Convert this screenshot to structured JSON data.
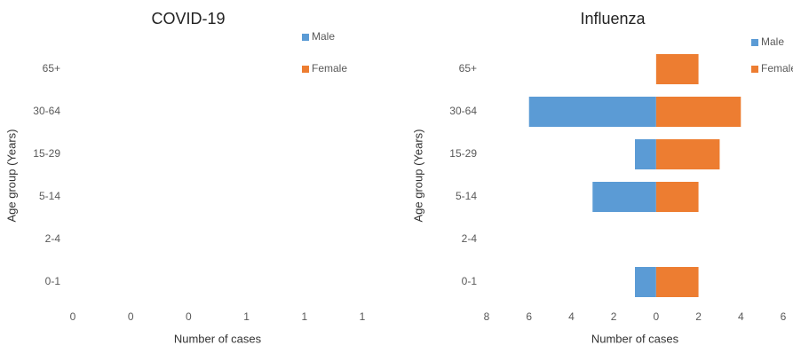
{
  "chart_data": [
    {
      "type": "bar",
      "orientation": "horizontal",
      "title": "COVID-19",
      "ylabel": "Age group (Years)",
      "xlabel": "Number of cases",
      "categories": [
        "0-1",
        "2-4",
        "5-14",
        "15-29",
        "30-64",
        "65+"
      ],
      "series": [
        {
          "name": "Male",
          "color": "#5b9bd5",
          "values": [
            0,
            0,
            0,
            0,
            0,
            0
          ]
        },
        {
          "name": "Female",
          "color": "#ed7d31",
          "values": [
            0,
            0,
            0,
            0,
            0,
            0
          ]
        }
      ],
      "xlim": [
        0,
        1
      ],
      "xticks": [
        0,
        {
          "value": 0.2,
          "label": "0"
        },
        {
          "value": 0.4,
          "label": "0"
        },
        {
          "value": 0.6,
          "label": "1"
        },
        {
          "value": 0.8,
          "label": "1"
        },
        1
      ]
    },
    {
      "type": "bar",
      "orientation": "horizontal",
      "title": "Influenza",
      "ylabel": "Age group (Years)",
      "xlabel": "Number of cases",
      "categories": [
        "0-1",
        "2-4",
        "5-14",
        "15-29",
        "30-64",
        "65+"
      ],
      "series": [
        {
          "name": "Male",
          "color": "#5b9bd5",
          "values": [
            -1,
            0,
            -3,
            -1,
            -6,
            0
          ]
        },
        {
          "name": "Female",
          "color": "#ed7d31",
          "values": [
            2,
            0,
            2,
            3,
            4,
            2
          ]
        }
      ],
      "xlim": [
        -8,
        6
      ],
      "xticks": [
        {
          "value": -8,
          "label": "8"
        },
        {
          "value": -6,
          "label": "6"
        },
        {
          "value": -4,
          "label": "4"
        },
        {
          "value": -2,
          "label": "2"
        },
        0,
        2,
        4,
        6
      ]
    }
  ]
}
